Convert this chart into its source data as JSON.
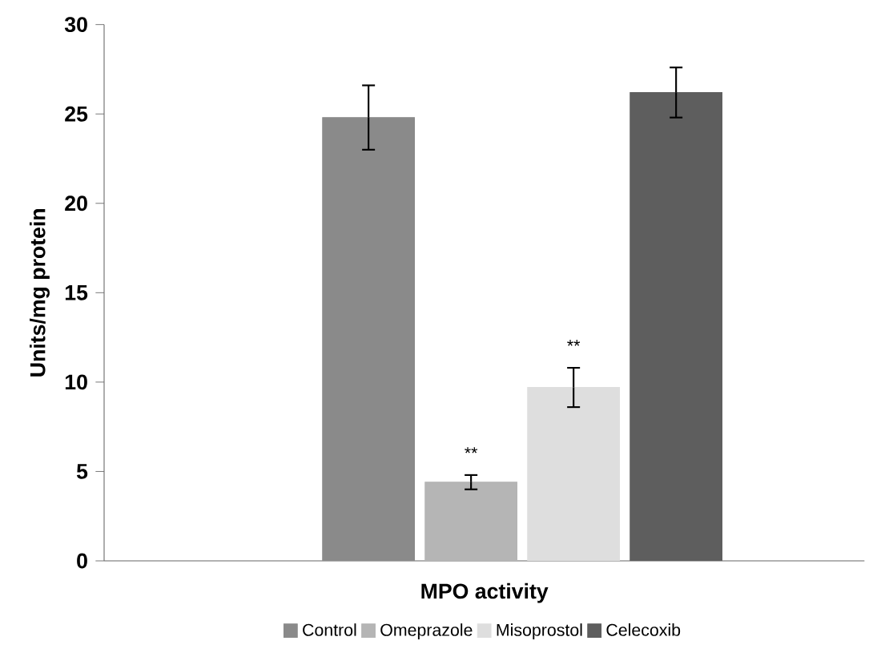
{
  "chart_data": {
    "type": "bar",
    "xlabel": "MPO activity",
    "ylabel": "Units/mg protein",
    "categories": [
      null
    ],
    "series": [
      {
        "name": "Control",
        "color": "#8a8a8a",
        "values": [
          24.8
        ],
        "errors": [
          1.8
        ]
      },
      {
        "name": "Omeprazole",
        "color": "#b5b5b5",
        "values": [
          4.4
        ],
        "errors": [
          0.4
        ],
        "value_labels": [
          "**"
        ]
      },
      {
        "name": "Misoprostol",
        "color": "#dedede",
        "values": [
          9.7
        ],
        "errors": [
          1.1
        ],
        "value_labels": [
          "**"
        ]
      },
      {
        "name": "Celecoxib",
        "color": "#5e5e5e",
        "values": [
          26.2
        ],
        "errors": [
          1.4
        ]
      }
    ],
    "ylim": [
      0,
      30
    ],
    "yticks": [
      0,
      5,
      10,
      15,
      20,
      25,
      30
    ],
    "tick_labels": "y",
    "legend": "bottom"
  }
}
